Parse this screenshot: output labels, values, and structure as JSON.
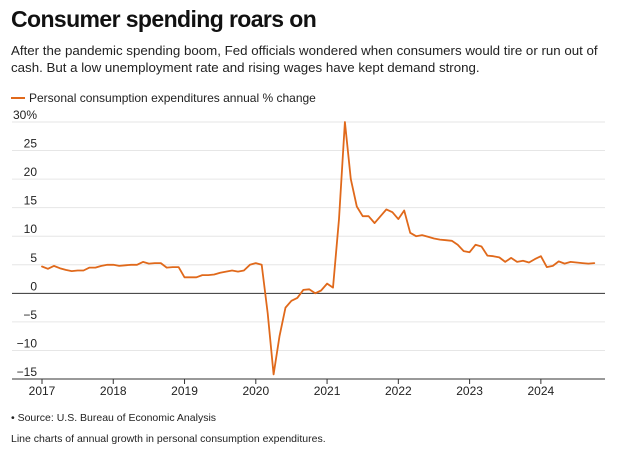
{
  "header": {
    "title": "Consumer spending roars on",
    "subtitle": "After the pandemic spending boom, Fed officials wondered when consumers would tire or run out of cash. But a low unemployment rate and rising wages have kept demand strong."
  },
  "footer": {
    "source": "• Source: U.S. Bureau of Economic Analysis",
    "caption": "Line charts of annual growth in personal consumption expenditures."
  },
  "colors": {
    "series": "#e0691b",
    "grid": "#e6e6e6",
    "zero_line": "#333333"
  },
  "chart_data": {
    "type": "line",
    "title": "Consumer spending roars on",
    "legend_position": "top-left",
    "grid": true,
    "xlim": [
      2017,
      2024.9
    ],
    "ylim": [
      -15,
      30
    ],
    "y_ticks": [
      30,
      25,
      20,
      15,
      10,
      5,
      0,
      -5,
      -10,
      -15
    ],
    "y_tick_labels": [
      "30%",
      "25",
      "20",
      "15",
      "10",
      "5",
      "0",
      "−5",
      "−10",
      "−15"
    ],
    "x_ticks": [
      2017,
      2018,
      2019,
      2020,
      2021,
      2022,
      2023,
      2024
    ],
    "x_tick_labels": [
      "2017",
      "2018",
      "2019",
      "2020",
      "2021",
      "2022",
      "2023",
      "2024"
    ],
    "series": [
      {
        "name": "Personal consumption expenditures annual % change",
        "x": [
          2017.0,
          2017.083,
          2017.167,
          2017.25,
          2017.333,
          2017.417,
          2017.5,
          2017.583,
          2017.667,
          2017.75,
          2017.833,
          2017.917,
          2018.0,
          2018.083,
          2018.167,
          2018.25,
          2018.333,
          2018.417,
          2018.5,
          2018.583,
          2018.667,
          2018.75,
          2018.833,
          2018.917,
          2019.0,
          2019.083,
          2019.167,
          2019.25,
          2019.333,
          2019.417,
          2019.5,
          2019.583,
          2019.667,
          2019.75,
          2019.833,
          2019.917,
          2020.0,
          2020.083,
          2020.167,
          2020.25,
          2020.333,
          2020.417,
          2020.5,
          2020.583,
          2020.667,
          2020.75,
          2020.833,
          2020.917,
          2021.0,
          2021.083,
          2021.167,
          2021.25,
          2021.333,
          2021.417,
          2021.5,
          2021.583,
          2021.667,
          2021.75,
          2021.833,
          2021.917,
          2022.0,
          2022.083,
          2022.167,
          2022.25,
          2022.333,
          2022.417,
          2022.5,
          2022.583,
          2022.667,
          2022.75,
          2022.833,
          2022.917,
          2023.0,
          2023.083,
          2023.167,
          2023.25,
          2023.333,
          2023.417,
          2023.5,
          2023.583,
          2023.667,
          2023.75,
          2023.833,
          2023.917,
          2024.0,
          2024.083,
          2024.167,
          2024.25,
          2024.333,
          2024.417,
          2024.5,
          2024.583,
          2024.667,
          2024.75
        ],
        "y": [
          4.7,
          4.3,
          4.8,
          4.4,
          4.1,
          3.9,
          4.0,
          4.0,
          4.5,
          4.5,
          4.8,
          5.0,
          5.0,
          4.8,
          4.9,
          5.0,
          5.0,
          5.5,
          5.2,
          5.3,
          5.3,
          4.5,
          4.6,
          4.6,
          2.8,
          2.8,
          2.8,
          3.2,
          3.2,
          3.3,
          3.6,
          3.8,
          4.0,
          3.8,
          4.0,
          5.0,
          5.3,
          5.0,
          -3.5,
          -14.2,
          -7.5,
          -2.5,
          -1.3,
          -0.8,
          0.6,
          0.7,
          0.0,
          0.5,
          1.7,
          1.0,
          13.0,
          30.0,
          20.0,
          15.2,
          13.5,
          13.5,
          12.3,
          13.5,
          14.7,
          14.2,
          13.0,
          14.5,
          10.6,
          10.0,
          10.2,
          9.9,
          9.6,
          9.4,
          9.3,
          9.2,
          8.5,
          7.4,
          7.2,
          8.5,
          8.2,
          6.6,
          6.5,
          6.3,
          5.5,
          6.2,
          5.5,
          5.7,
          5.4,
          6.0,
          6.5,
          4.6,
          4.8,
          5.6,
          5.2,
          5.5,
          5.4,
          5.3,
          5.2,
          5.3
        ]
      }
    ]
  }
}
